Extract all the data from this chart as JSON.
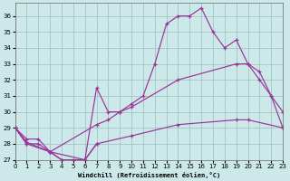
{
  "xlabel": "Windchill (Refroidissement éolien,°C)",
  "xlim": [
    0,
    23
  ],
  "ylim": [
    27,
    36
  ],
  "yticks": [
    27,
    28,
    29,
    30,
    31,
    32,
    33,
    34,
    35,
    36
  ],
  "xticks": [
    0,
    1,
    2,
    3,
    4,
    5,
    6,
    7,
    8,
    9,
    10,
    11,
    12,
    13,
    14,
    15,
    16,
    17,
    18,
    19,
    20,
    21,
    22,
    23
  ],
  "bg_color": "#cce8e8",
  "line_color": "#993399",
  "series1_x": [
    0,
    1,
    2,
    3,
    4,
    5,
    6,
    7,
    8,
    9,
    10,
    11,
    12,
    13,
    14,
    15,
    16,
    17,
    18,
    19,
    20,
    21,
    22,
    23
  ],
  "series1_y": [
    29,
    28,
    28,
    27.5,
    27,
    27,
    27,
    31.5,
    30,
    30,
    30.5,
    31,
    33,
    35.5,
    36,
    36,
    36.5,
    35,
    34,
    34.5,
    33,
    32,
    31,
    29
  ],
  "series2_x": [
    0,
    1,
    2,
    3,
    7,
    8,
    9,
    10,
    14,
    19,
    20,
    21,
    22,
    23
  ],
  "series2_y": [
    29,
    28.3,
    28.3,
    27.5,
    29.2,
    29.5,
    30.0,
    30.3,
    32.0,
    33.0,
    33.0,
    32.5,
    31.0,
    30.0
  ],
  "series3_x": [
    0,
    1,
    3,
    6,
    7,
    10,
    14,
    19,
    20,
    23
  ],
  "series3_y": [
    29,
    28.1,
    27.5,
    27.0,
    28.0,
    28.5,
    29.2,
    29.5,
    29.5,
    29.0
  ],
  "series4_x": [
    0,
    1,
    3,
    4,
    5,
    6,
    7
  ],
  "series4_y": [
    29,
    28,
    27.5,
    27.0,
    27.0,
    27.0,
    28.0
  ]
}
